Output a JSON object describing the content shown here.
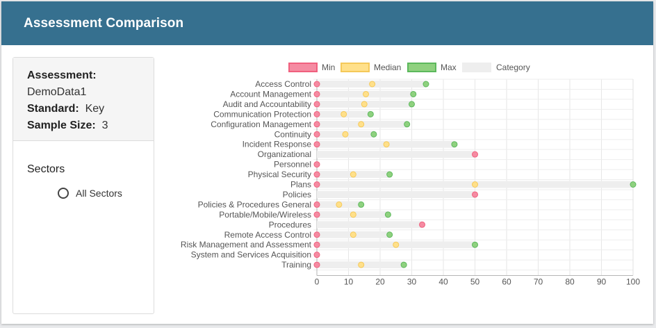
{
  "header": {
    "title": "Assessment Comparison"
  },
  "info": {
    "assessment_label": "Assessment:",
    "assessment_value": "DemoData1",
    "standard_label": "Standard:",
    "standard_value": "Key",
    "sample_label": "Sample Size:",
    "sample_value": "3"
  },
  "sectors": {
    "title": "Sectors",
    "option": "All Sectors"
  },
  "chart_data": {
    "type": "scatter",
    "legend": [
      {
        "name": "Min",
        "color": "#f58ba2",
        "border": "#f0607e"
      },
      {
        "name": "Median",
        "color": "#ffe08a",
        "border": "#f5c95a"
      },
      {
        "name": "Max",
        "color": "#8fd17f",
        "border": "#5cb85c"
      },
      {
        "name": "Category",
        "color": "#eeeeee",
        "border": "#eeeeee"
      }
    ],
    "legend_position": "top",
    "grid": true,
    "xlim": [
      0,
      100
    ],
    "x_ticks": [
      0,
      10,
      20,
      30,
      40,
      50,
      60,
      70,
      80,
      90,
      100
    ],
    "categories": [
      "Access Control",
      "Account Management",
      "Audit and Accountability",
      "Communication Protection",
      "Configuration Management",
      "Continuity",
      "Incident Response",
      "Organizational",
      "Personnel",
      "Physical Security",
      "Plans",
      "Policies",
      "Policies & Procedures General",
      "Portable/Mobile/Wireless",
      "Procedures",
      "Remote Access Control",
      "Risk Management and Assessment",
      "System and Services Acquisition",
      "Training"
    ],
    "series": [
      {
        "name": "Min",
        "values": [
          0,
          0,
          0,
          0,
          0,
          0,
          0,
          50,
          0,
          0,
          0,
          50,
          0,
          0,
          33.3,
          0,
          0,
          0,
          0
        ]
      },
      {
        "name": "Median",
        "values": [
          17.5,
          15.5,
          15,
          8.5,
          14,
          9,
          22,
          null,
          null,
          11.5,
          50,
          null,
          7,
          11.5,
          null,
          11.5,
          25,
          null,
          14
        ]
      },
      {
        "name": "Max",
        "values": [
          34.5,
          30.5,
          30,
          17,
          28.5,
          18,
          43.5,
          null,
          null,
          23,
          100,
          null,
          14,
          22.5,
          null,
          23,
          50,
          null,
          27.5
        ]
      }
    ],
    "category_bar_end": [
      34.5,
      30.5,
      30,
      17,
      28.5,
      18,
      43.5,
      50,
      0,
      23,
      100,
      50,
      14,
      22.5,
      33.3,
      23,
      50,
      0,
      27.5
    ]
  }
}
